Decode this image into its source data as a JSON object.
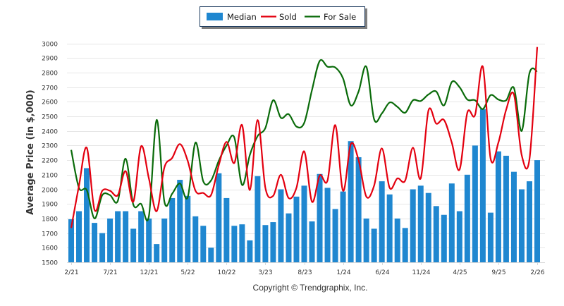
{
  "chart_data": {
    "type": "bar+line",
    "title": "",
    "xlabel": "",
    "ylabel": "Average Price (in $,000)",
    "ylim": [
      1500,
      3000
    ],
    "yticks": [
      1500,
      1600,
      1700,
      1800,
      1900,
      2000,
      2100,
      2200,
      2300,
      2400,
      2500,
      2600,
      2700,
      2800,
      2900,
      3000
    ],
    "grid": true,
    "legend_position": "top-center",
    "x_tick_labels": [
      "2/21",
      "7/21",
      "12/21",
      "5/22",
      "10/22",
      "3/23",
      "8/23",
      "1/24",
      "6/24",
      "11/24",
      "4/25",
      "9/25",
      "2/26"
    ],
    "x_tick_every": 5,
    "categories": [
      "2/21",
      "3/21",
      "4/21",
      "5/21",
      "6/21",
      "7/21",
      "8/21",
      "9/21",
      "10/21",
      "11/21",
      "12/21",
      "1/22",
      "2/22",
      "3/22",
      "4/22",
      "5/22",
      "6/22",
      "7/22",
      "8/22",
      "9/22",
      "10/22",
      "11/22",
      "12/22",
      "1/23",
      "2/23",
      "3/23",
      "4/23",
      "5/23",
      "6/23",
      "7/23",
      "8/23",
      "9/23",
      "10/23",
      "11/23",
      "12/23",
      "1/24",
      "2/24",
      "3/24",
      "4/24",
      "5/24",
      "6/24",
      "7/24",
      "8/24",
      "9/24",
      "10/24",
      "11/24",
      "12/24",
      "1/25",
      "2/25",
      "3/25",
      "4/25",
      "5/25",
      "6/25",
      "7/25",
      "8/25",
      "9/25",
      "10/25",
      "11/25",
      "12/25",
      "1/26",
      "2/26"
    ],
    "series": [
      {
        "name": "Median",
        "type": "bar",
        "color": "#1f87d0",
        "values": [
          1795,
          1850,
          2145,
          1770,
          1700,
          1800,
          1850,
          1850,
          1730,
          1850,
          1800,
          1625,
          1800,
          1940,
          2065,
          1955,
          1815,
          1750,
          1600,
          2110,
          1940,
          1750,
          1760,
          1650,
          2090,
          1755,
          1775,
          2000,
          1835,
          1950,
          2025,
          1780,
          2105,
          2010,
          1865,
          1985,
          2330,
          2220,
          1800,
          1730,
          2055,
          1965,
          1800,
          1735,
          2000,
          2025,
          1975,
          1885,
          1825,
          2040,
          1850,
          2100,
          2300,
          2550,
          1840,
          2260,
          2230,
          2120,
          2000,
          2055,
          2200
        ]
      },
      {
        "name": "Sold",
        "type": "line",
        "color": "#e3000f",
        "values": [
          1735,
          2025,
          2285,
          1860,
          1990,
          1990,
          1960,
          2125,
          1915,
          2295,
          2075,
          1850,
          2150,
          2215,
          2310,
          2195,
          1990,
          1975,
          1960,
          2165,
          2325,
          2180,
          2440,
          1995,
          2475,
          2010,
          1955,
          2100,
          1940,
          2010,
          2260,
          1915,
          2095,
          2060,
          2440,
          1990,
          2310,
          2200,
          1950,
          2025,
          2280,
          2010,
          2075,
          2060,
          2285,
          2075,
          2540,
          2450,
          2475,
          2320,
          2135,
          2525,
          2510,
          2840,
          2210,
          2320,
          2545,
          2650,
          2235,
          2205,
          2975
        ]
      },
      {
        "name": "For Sale",
        "type": "line",
        "color": "#0a6b0a",
        "values": [
          2270,
          2010,
          1995,
          1800,
          1960,
          1960,
          1920,
          2210,
          1895,
          1900,
          1815,
          2475,
          1915,
          1970,
          2040,
          1945,
          2320,
          2055,
          2060,
          2195,
          2300,
          2355,
          2030,
          2235,
          2365,
          2420,
          2610,
          2490,
          2515,
          2430,
          2455,
          2680,
          2880,
          2840,
          2835,
          2760,
          2575,
          2670,
          2840,
          2480,
          2520,
          2595,
          2565,
          2525,
          2610,
          2605,
          2650,
          2670,
          2575,
          2735,
          2700,
          2615,
          2610,
          2550,
          2645,
          2615,
          2610,
          2695,
          2400,
          2795,
          2810
        ]
      }
    ]
  },
  "legend": {
    "items": [
      {
        "label": "Median",
        "color": "#1f87d0",
        "kind": "box"
      },
      {
        "label": "Sold",
        "color": "#e3000f",
        "kind": "line"
      },
      {
        "label": "For Sale",
        "color": "#0a6b0a",
        "kind": "line"
      }
    ]
  },
  "footer": {
    "copyright": "Copyright © Trendgraphix, Inc."
  }
}
